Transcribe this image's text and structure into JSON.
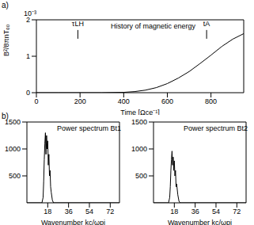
{
  "chart_data": [
    {
      "type": "line",
      "label": "a)",
      "title": "History of magnetic energy",
      "y_multiplier": "10⁻³",
      "x_label": "Time [Ωce⁻¹]",
      "y_label": "B²/8πnTₑ₀",
      "x": [
        0,
        100,
        200,
        300,
        400,
        450,
        500,
        550,
        600,
        650,
        700,
        750,
        800,
        850,
        900,
        950
      ],
      "values": [
        0,
        0,
        0,
        0,
        0.01,
        0.03,
        0.07,
        0.14,
        0.25,
        0.4,
        0.58,
        0.8,
        1.03,
        1.27,
        1.47,
        1.62
      ],
      "color": "#000000",
      "xlim": [
        0,
        950
      ],
      "xticks": [
        0,
        200,
        400,
        600,
        800
      ],
      "ylim": [
        0,
        2
      ],
      "yticks": [
        0,
        1,
        2
      ],
      "annotations": [
        {
          "text": "τLH",
          "x": 190
        },
        {
          "text": "tA",
          "x": 780
        }
      ]
    },
    {
      "type": "line",
      "label": "b)",
      "title": "Power spectrum Bt1",
      "x_label": "Wavenumber kc/ωpi",
      "x": [
        0,
        12,
        13,
        14,
        14.5,
        15,
        15.5,
        16,
        16.5,
        17,
        17.5,
        18,
        18.5,
        19,
        19.5,
        20,
        20.5,
        21,
        22,
        23,
        80
      ],
      "values": [
        0,
        0,
        0,
        100,
        400,
        800,
        1100,
        1300,
        900,
        1250,
        1000,
        1150,
        700,
        900,
        500,
        600,
        300,
        200,
        50,
        0,
        0
      ],
      "color": "#000000",
      "xlim": [
        0,
        80
      ],
      "xticks": [
        18,
        36,
        54,
        72
      ],
      "ylim": [
        0,
        1500
      ],
      "yticks": [
        500,
        1000,
        1500
      ]
    },
    {
      "type": "line",
      "title": "Power spectrum Bt2",
      "x_label": "Wavenumber kc/ωpi",
      "x": [
        0,
        12,
        13,
        14,
        14.5,
        15,
        15.5,
        16,
        16.5,
        17,
        17.5,
        18,
        18.5,
        19,
        19.5,
        20,
        21,
        22,
        23,
        80
      ],
      "values": [
        0,
        0,
        0,
        100,
        300,
        600,
        800,
        960,
        700,
        850,
        600,
        780,
        500,
        600,
        300,
        350,
        150,
        30,
        0,
        0
      ],
      "color": "#000000",
      "xlim": [
        0,
        80
      ],
      "xticks": [
        18,
        36,
        54,
        72
      ],
      "ylim": [
        0,
        1500
      ],
      "yticks": [
        500,
        1000,
        1500
      ]
    }
  ]
}
